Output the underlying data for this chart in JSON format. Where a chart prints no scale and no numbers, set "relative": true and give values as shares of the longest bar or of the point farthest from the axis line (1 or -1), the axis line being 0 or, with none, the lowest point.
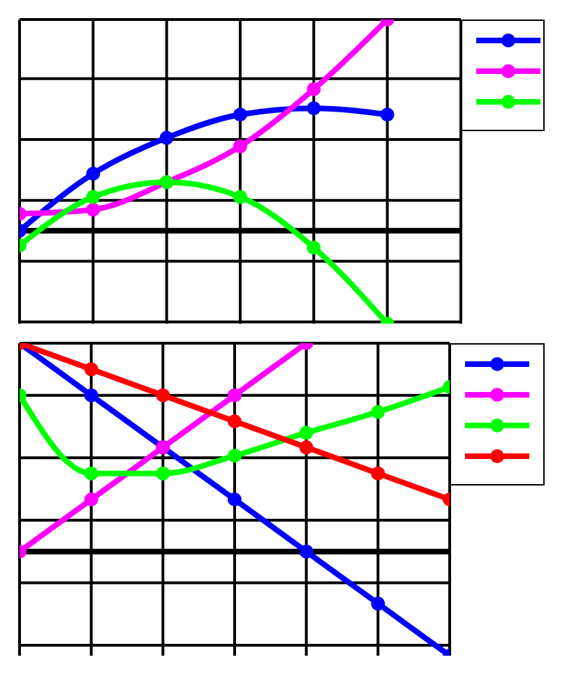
{
  "chart_data": [
    {
      "type": "line",
      "relative": true,
      "categories": [
        null,
        null,
        null,
        null,
        null,
        null,
        null
      ],
      "grid": true,
      "marker": "circle",
      "line_style": "solid",
      "series": [
        {
          "color": "#0000ff",
          "values": [
            0,
            0.27,
            0.44,
            0.55,
            0.58,
            0.55,
            null
          ]
        },
        {
          "color": "#ff00ff",
          "values": [
            0.08,
            0.1,
            0.23,
            0.4,
            0.67,
            1,
            null
          ]
        },
        {
          "color": "#00ff00",
          "values": [
            -0.07,
            0.16,
            0.23,
            0.16,
            -0.08,
            -0.44,
            null
          ]
        }
      ]
    },
    {
      "type": "line",
      "relative": true,
      "categories": [
        null,
        null,
        null,
        null,
        null,
        null,
        null
      ],
      "grid": true,
      "marker": "circle",
      "line_style": "solid",
      "series": [
        {
          "color": "#0000ff",
          "values": [
            1,
            0.75,
            0.5,
            0.25,
            0,
            -0.25,
            -0.5
          ]
        },
        {
          "color": "#ff00ff",
          "values": [
            0,
            0.25,
            0.5,
            0.75,
            1,
            null,
            null
          ]
        },
        {
          "color": "#00ff00",
          "values": [
            0.75,
            0.375,
            0.375,
            0.46,
            0.57,
            0.67,
            0.79
          ]
        },
        {
          "color": "#ff0000",
          "values": [
            1,
            0.875,
            0.75,
            0.625,
            0.5,
            0.375,
            0.25
          ]
        }
      ]
    }
  ]
}
